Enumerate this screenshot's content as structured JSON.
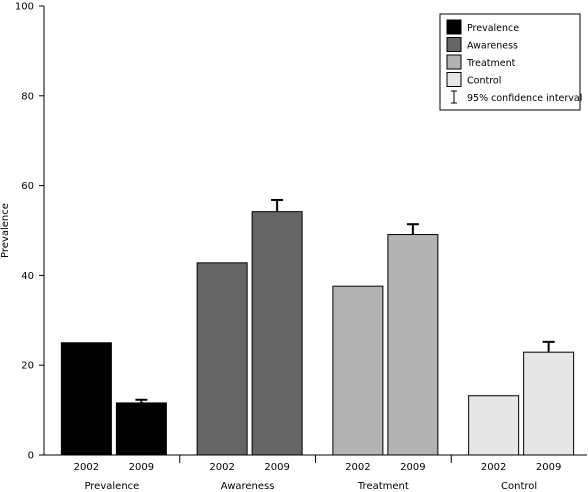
{
  "chart_data": {
    "type": "bar",
    "title": "",
    "xlabel": "",
    "ylabel": "Prevalence",
    "ylim": [
      0,
      100
    ],
    "yticks": [
      0,
      20,
      40,
      60,
      80,
      100
    ],
    "grid": false,
    "legend_position": "top-right",
    "groups": [
      {
        "label": "Prevalence",
        "color": "#000000",
        "bars": [
          {
            "year": "2002",
            "value": 25.0,
            "ci_upper": null
          },
          {
            "year": "2009",
            "value": 11.6,
            "ci_upper": 12.3
          }
        ]
      },
      {
        "label": "Awareness",
        "color": "#666666",
        "bars": [
          {
            "year": "2002",
            "value": 42.8,
            "ci_upper": null
          },
          {
            "year": "2009",
            "value": 54.2,
            "ci_upper": 56.8
          }
        ]
      },
      {
        "label": "Treatment",
        "color": "#b3b3b3",
        "bars": [
          {
            "year": "2002",
            "value": 37.6,
            "ci_upper": null
          },
          {
            "year": "2009",
            "value": 49.1,
            "ci_upper": 51.4
          }
        ]
      },
      {
        "label": "Control",
        "color": "#e6e6e6",
        "bars": [
          {
            "year": "2002",
            "value": 13.2,
            "ci_upper": null
          },
          {
            "year": "2009",
            "value": 22.9,
            "ci_upper": 25.2
          }
        ]
      }
    ],
    "legend": [
      {
        "label": "Prevalence",
        "color": "#000000",
        "kind": "box"
      },
      {
        "label": "Awareness",
        "color": "#666666",
        "kind": "box"
      },
      {
        "label": "Treatment",
        "color": "#b3b3b3",
        "kind": "box"
      },
      {
        "label": "Control",
        "color": "#e6e6e6",
        "kind": "box"
      },
      {
        "label": "95% confidence interval",
        "color": "#000000",
        "kind": "errorbar"
      }
    ]
  }
}
